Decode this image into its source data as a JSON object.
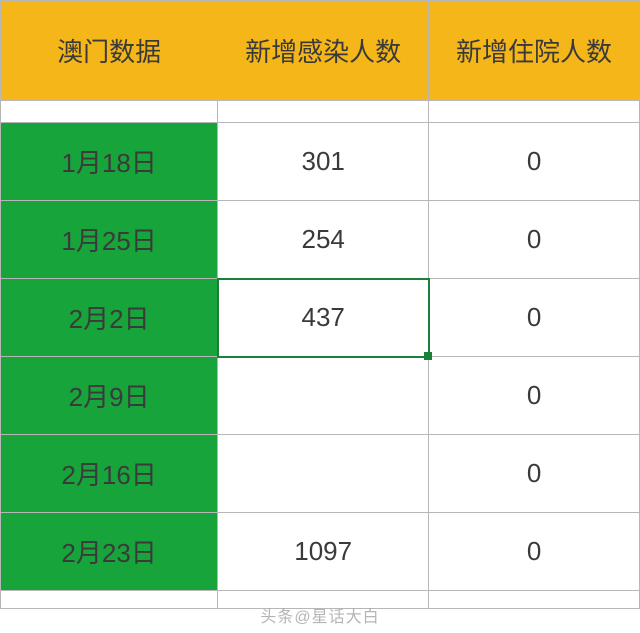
{
  "table": {
    "type": "table",
    "header_bg": "#f4b618",
    "header_fg": "#3a3a3a",
    "date_col_bg": "#17a53b",
    "date_col_fg": "#3a3a3a",
    "cell_bg": "#ffffff",
    "cell_fg": "#3a3a3a",
    "border_color": "#b7b7b7",
    "selection_color": "#1a7f37",
    "header_fontsize": 26,
    "cell_fontsize": 26,
    "columns": [
      "澳门数据",
      "新增感染人数",
      "新增住院人数"
    ],
    "rows": [
      {
        "date": "1月18日",
        "infections": "301",
        "hospital": "0"
      },
      {
        "date": "1月25日",
        "infections": "254",
        "hospital": "0"
      },
      {
        "date": "2月2日",
        "infections": "437",
        "hospital": "0"
      },
      {
        "date": "2月9日",
        "infections": "",
        "hospital": "0"
      },
      {
        "date": "2月16日",
        "infections": "",
        "hospital": "0"
      },
      {
        "date": "2月23日",
        "infections": "1097",
        "hospital": "0"
      }
    ],
    "selected_cell": {
      "row": 2,
      "col": 1
    },
    "column_widths_pct": [
      34,
      33,
      33
    ]
  },
  "watermark": "头条@星话大白"
}
